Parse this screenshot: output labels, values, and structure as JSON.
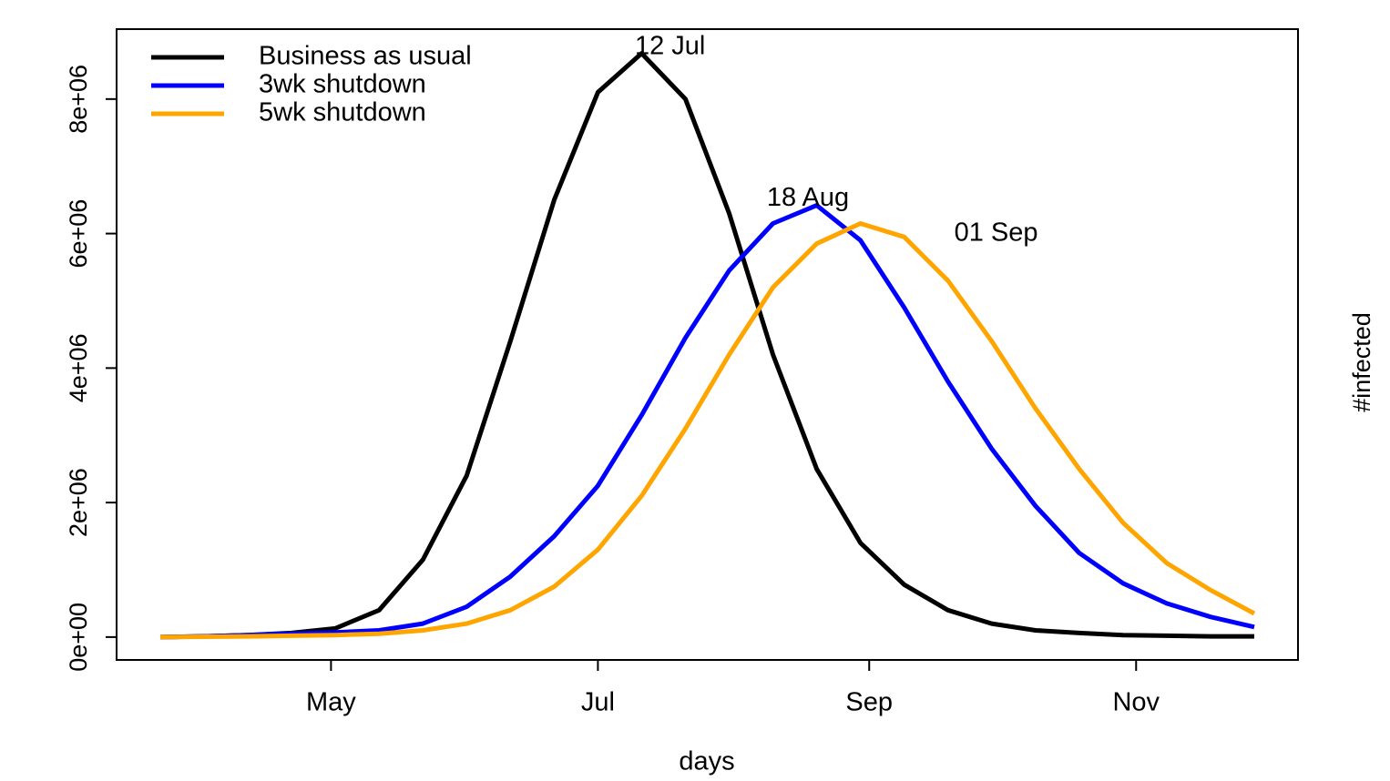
{
  "chart_data": {
    "type": "line",
    "x_label": "days",
    "y_label": "#infected",
    "x": [
      82,
      92,
      102,
      112,
      122,
      132,
      142,
      152,
      162,
      172,
      182,
      192,
      202,
      212,
      222,
      232,
      242,
      252,
      262,
      272,
      282,
      292,
      302,
      312,
      322,
      332
    ],
    "series": [
      {
        "name": "Business as usual",
        "color": "#000000",
        "values": [
          0,
          10000,
          30000,
          60000,
          130000,
          400000,
          1150000,
          2400000,
          4400000,
          6500000,
          8100000,
          8680000,
          8000000,
          6300000,
          4200000,
          2500000,
          1400000,
          780000,
          400000,
          200000,
          100000,
          60000,
          30000,
          20000,
          10000,
          10000
        ]
      },
      {
        "name": "3wk shutdown",
        "color": "#0000ff",
        "values": [
          0,
          10000,
          30000,
          50000,
          70000,
          100000,
          200000,
          450000,
          900000,
          1500000,
          2250000,
          3300000,
          4450000,
          5450000,
          6150000,
          6420000,
          5900000,
          4900000,
          3800000,
          2800000,
          1950000,
          1250000,
          800000,
          500000,
          300000,
          150000
        ]
      },
      {
        "name": "5wk shutdown",
        "color": "#ffa500",
        "values": [
          0,
          5000,
          10000,
          20000,
          30000,
          50000,
          100000,
          200000,
          400000,
          750000,
          1300000,
          2100000,
          3100000,
          4200000,
          5200000,
          5850000,
          6150000,
          5950000,
          5300000,
          4400000,
          3400000,
          2500000,
          1700000,
          1100000,
          700000,
          350000
        ]
      }
    ],
    "annotations": [
      {
        "text": "12 Jul",
        "x": 198.5,
        "y": 8770000
      },
      {
        "text": "18 Aug",
        "x": 230,
        "y": 6520000
      },
      {
        "text": "01 Sep",
        "x": 273,
        "y": 6000000
      }
    ],
    "xlim": [
      72,
      342
    ],
    "ylim": [
      -340000,
      9040000
    ],
    "xticks": [
      {
        "value": 121,
        "label": "May"
      },
      {
        "value": 182,
        "label": "Jul"
      },
      {
        "value": 244,
        "label": "Sep"
      },
      {
        "value": 305,
        "label": "Nov"
      }
    ],
    "yticks": [
      {
        "value": 0,
        "label": "0e+00"
      },
      {
        "value": 2000000,
        "label": "2e+06"
      },
      {
        "value": 4000000,
        "label": "4e+06"
      },
      {
        "value": 6000000,
        "label": "6e+06"
      },
      {
        "value": 8000000,
        "label": "8e+06"
      }
    ],
    "legend": "top-left"
  }
}
